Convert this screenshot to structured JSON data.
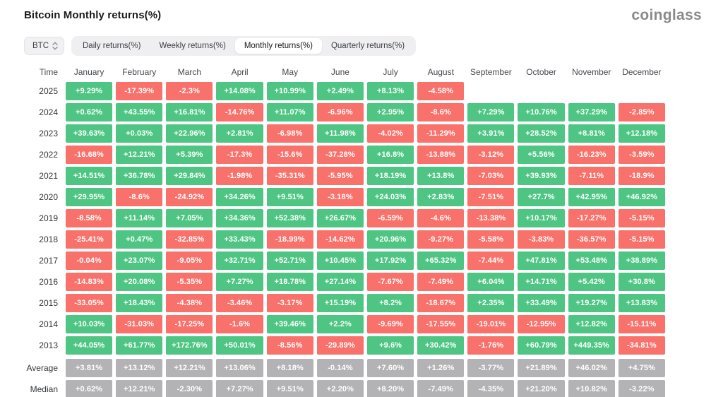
{
  "header": {
    "title": "Bitcoin Monthly returns(%)",
    "logo_text": "coinglass"
  },
  "toolbar": {
    "symbol_select": {
      "value": "BTC"
    },
    "tabs": [
      {
        "label": "Daily returns(%)",
        "active": false
      },
      {
        "label": "Weekly returns(%)",
        "active": false
      },
      {
        "label": "Monthly returns(%)",
        "active": true
      },
      {
        "label": "Quarterly returns(%)",
        "active": false
      }
    ]
  },
  "colors": {
    "positive": "#4fc583",
    "negative": "#f8716b",
    "neutral": "#b3b3b5"
  },
  "chart_data": {
    "type": "heatmap",
    "title": "Bitcoin Monthly returns(%)",
    "unit": "%",
    "legend_position": "none",
    "columns": [
      "Time",
      "January",
      "February",
      "March",
      "April",
      "May",
      "June",
      "July",
      "August",
      "September",
      "October",
      "November",
      "December"
    ],
    "rows": [
      {
        "label": "2025",
        "kind": "year",
        "values": [
          "+9.29%",
          "-17.39%",
          "-2.3%",
          "+14.08%",
          "+10.99%",
          "+2.49%",
          "+8.13%",
          "-4.58%",
          "",
          "",
          "",
          ""
        ]
      },
      {
        "label": "2024",
        "kind": "year",
        "values": [
          "+0.62%",
          "+43.55%",
          "+16.81%",
          "-14.76%",
          "+11.07%",
          "-6.96%",
          "+2.95%",
          "-8.6%",
          "+7.29%",
          "+10.76%",
          "+37.29%",
          "-2.85%"
        ]
      },
      {
        "label": "2023",
        "kind": "year",
        "values": [
          "+39.63%",
          "+0.03%",
          "+22.96%",
          "+2.81%",
          "-6.98%",
          "+11.98%",
          "-4.02%",
          "-11.29%",
          "+3.91%",
          "+28.52%",
          "+8.81%",
          "+12.18%"
        ]
      },
      {
        "label": "2022",
        "kind": "year",
        "values": [
          "-16.68%",
          "+12.21%",
          "+5.39%",
          "-17.3%",
          "-15.6%",
          "-37.28%",
          "+16.8%",
          "-13.88%",
          "-3.12%",
          "+5.56%",
          "-16.23%",
          "-3.59%"
        ]
      },
      {
        "label": "2021",
        "kind": "year",
        "values": [
          "+14.51%",
          "+36.78%",
          "+29.84%",
          "-1.98%",
          "-35.31%",
          "-5.95%",
          "+18.19%",
          "+13.8%",
          "-7.03%",
          "+39.93%",
          "-7.11%",
          "-18.9%"
        ]
      },
      {
        "label": "2020",
        "kind": "year",
        "values": [
          "+29.95%",
          "-8.6%",
          "-24.92%",
          "+34.26%",
          "+9.51%",
          "-3.18%",
          "+24.03%",
          "+2.83%",
          "-7.51%",
          "+27.7%",
          "+42.95%",
          "+46.92%"
        ]
      },
      {
        "label": "2019",
        "kind": "year",
        "values": [
          "-8.58%",
          "+11.14%",
          "+7.05%",
          "+34.36%",
          "+52.38%",
          "+26.67%",
          "-6.59%",
          "-4.6%",
          "-13.38%",
          "+10.17%",
          "-17.27%",
          "-5.15%"
        ]
      },
      {
        "label": "2018",
        "kind": "year",
        "values": [
          "-25.41%",
          "+0.47%",
          "-32.85%",
          "+33.43%",
          "-18.99%",
          "-14.62%",
          "+20.96%",
          "-9.27%",
          "-5.58%",
          "-3.83%",
          "-36.57%",
          "-5.15%"
        ]
      },
      {
        "label": "2017",
        "kind": "year",
        "values": [
          "-0.04%",
          "+23.07%",
          "-9.05%",
          "+32.71%",
          "+52.71%",
          "+10.45%",
          "+17.92%",
          "+65.32%",
          "-7.44%",
          "+47.81%",
          "+53.48%",
          "+38.89%"
        ]
      },
      {
        "label": "2016",
        "kind": "year",
        "values": [
          "-14.83%",
          "+20.08%",
          "-5.35%",
          "+7.27%",
          "+18.78%",
          "+27.14%",
          "-7.67%",
          "-7.49%",
          "+6.04%",
          "+14.71%",
          "+5.42%",
          "+30.8%"
        ]
      },
      {
        "label": "2015",
        "kind": "year",
        "values": [
          "-33.05%",
          "+18.43%",
          "-4.38%",
          "-3.46%",
          "-3.17%",
          "+15.19%",
          "+8.2%",
          "-18.67%",
          "+2.35%",
          "+33.49%",
          "+19.27%",
          "+13.83%"
        ]
      },
      {
        "label": "2014",
        "kind": "year",
        "values": [
          "+10.03%",
          "-31.03%",
          "-17.25%",
          "-1.6%",
          "+39.46%",
          "+2.2%",
          "-9.69%",
          "-17.55%",
          "-19.01%",
          "-12.95%",
          "+12.82%",
          "-15.11%"
        ]
      },
      {
        "label": "2013",
        "kind": "year",
        "values": [
          "+44.05%",
          "+61.77%",
          "+172.76%",
          "+50.01%",
          "-8.56%",
          "-29.89%",
          "+9.6%",
          "+30.42%",
          "-1.76%",
          "+60.79%",
          "+449.35%",
          "-34.81%"
        ]
      },
      {
        "label": "Average",
        "kind": "stat",
        "values": [
          "+3.81%",
          "+13.12%",
          "+12.21%",
          "+13.06%",
          "+8.18%",
          "-0.14%",
          "+7.60%",
          "+1.26%",
          "-3.77%",
          "+21.89%",
          "+46.02%",
          "+4.75%"
        ]
      },
      {
        "label": "Median",
        "kind": "stat",
        "values": [
          "+0.62%",
          "+12.21%",
          "-2.30%",
          "+7.27%",
          "+9.51%",
          "+2.20%",
          "+8.20%",
          "-7.49%",
          "-4.35%",
          "+21.20%",
          "+10.82%",
          "-3.22%"
        ]
      }
    ]
  }
}
